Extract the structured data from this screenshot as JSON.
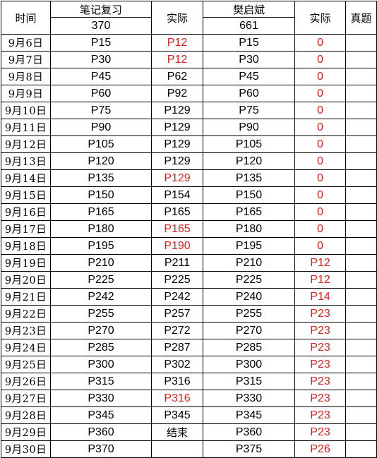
{
  "colors": {
    "text": "#000000",
    "highlight": "#e0201b",
    "grid": "#000000"
  },
  "header": {
    "time": "时间",
    "group1_title": "笔记复习",
    "group1_total": "370",
    "actual1": "实际",
    "group2_title": "樊启斌",
    "group2_total": "661",
    "actual2": "实际",
    "exam": "真题"
  },
  "rows": [
    {
      "date": "9月6日",
      "plan1": "P15",
      "actual1": "P12",
      "actual1_red": true,
      "plan2": "P15",
      "actual2": "0",
      "exam": ""
    },
    {
      "date": "9月7日",
      "plan1": "P30",
      "actual1": "P12",
      "actual1_red": true,
      "plan2": "P30",
      "actual2": "0",
      "exam": ""
    },
    {
      "date": "9月8日",
      "plan1": "P45",
      "actual1": "P62",
      "actual1_red": false,
      "plan2": "P45",
      "actual2": "0",
      "exam": ""
    },
    {
      "date": "9月9日",
      "plan1": "P60",
      "actual1": "P92",
      "actual1_red": false,
      "plan2": "P60",
      "actual2": "0",
      "exam": ""
    },
    {
      "date": "9月10日",
      "plan1": "P75",
      "actual1": "P129",
      "actual1_red": false,
      "plan2": "P75",
      "actual2": "0",
      "exam": ""
    },
    {
      "date": "9月11日",
      "plan1": "P90",
      "actual1": "P129",
      "actual1_red": false,
      "plan2": "P90",
      "actual2": "0",
      "exam": ""
    },
    {
      "date": "9月12日",
      "plan1": "P105",
      "actual1": "P129",
      "actual1_red": false,
      "plan2": "P105",
      "actual2": "0",
      "exam": ""
    },
    {
      "date": "9月13日",
      "plan1": "P120",
      "actual1": "P129",
      "actual1_red": false,
      "plan2": "P120",
      "actual2": "0",
      "exam": ""
    },
    {
      "date": "9月14日",
      "plan1": "P135",
      "actual1": "P129",
      "actual1_red": true,
      "plan2": "P135",
      "actual2": "0",
      "exam": ""
    },
    {
      "date": "9月15日",
      "plan1": "P150",
      "actual1": "P154",
      "actual1_red": false,
      "plan2": "P150",
      "actual2": "0",
      "exam": ""
    },
    {
      "date": "9月16日",
      "plan1": "P165",
      "actual1": "P165",
      "actual1_red": false,
      "plan2": "P165",
      "actual2": "0",
      "exam": ""
    },
    {
      "date": "9月17日",
      "plan1": "P180",
      "actual1": "P165",
      "actual1_red": true,
      "plan2": "P180",
      "actual2": "0",
      "exam": ""
    },
    {
      "date": "9月18日",
      "plan1": "P195",
      "actual1": "P190",
      "actual1_red": true,
      "plan2": "P195",
      "actual2": "0",
      "exam": ""
    },
    {
      "date": "9月19日",
      "plan1": "P210",
      "actual1": "P211",
      "actual1_red": false,
      "plan2": "P210",
      "actual2": "P12",
      "exam": ""
    },
    {
      "date": "9月20日",
      "plan1": "P225",
      "actual1": "P225",
      "actual1_red": false,
      "plan2": "P225",
      "actual2": "P12",
      "exam": ""
    },
    {
      "date": "9月21日",
      "plan1": "P242",
      "actual1": "P242",
      "actual1_red": false,
      "plan2": "P240",
      "actual2": "P14",
      "exam": ""
    },
    {
      "date": "9月22日",
      "plan1": "P255",
      "actual1": "P257",
      "actual1_red": false,
      "plan2": "P255",
      "actual2": "P23",
      "exam": ""
    },
    {
      "date": "9月23日",
      "plan1": "P270",
      "actual1": "P272",
      "actual1_red": false,
      "plan2": "P270",
      "actual2": "P23",
      "exam": ""
    },
    {
      "date": "9月24日",
      "plan1": "P285",
      "actual1": "P287",
      "actual1_red": false,
      "plan2": "P285",
      "actual2": "P23",
      "exam": ""
    },
    {
      "date": "9月25日",
      "plan1": "P300",
      "actual1": "P302",
      "actual1_red": false,
      "plan2": "P300",
      "actual2": "P23",
      "exam": ""
    },
    {
      "date": "9月26日",
      "plan1": "P315",
      "actual1": "P316",
      "actual1_red": false,
      "plan2": "P315",
      "actual2": "P23",
      "exam": ""
    },
    {
      "date": "9月27日",
      "plan1": "P330",
      "actual1": "P316",
      "actual1_red": true,
      "plan2": "P330",
      "actual2": "P23",
      "exam": ""
    },
    {
      "date": "9月28日",
      "plan1": "P345",
      "actual1": "P345",
      "actual1_red": false,
      "plan2": "P345",
      "actual2": "P23",
      "exam": ""
    },
    {
      "date": "9月29日",
      "plan1": "P360",
      "actual1": "结束",
      "actual1_red": false,
      "plan2": "P360",
      "actual2": "P23",
      "exam": ""
    },
    {
      "date": "9月30日",
      "plan1": "P370",
      "actual1": "",
      "actual1_red": false,
      "plan2": "P375",
      "actual2": "P26",
      "exam": ""
    }
  ]
}
